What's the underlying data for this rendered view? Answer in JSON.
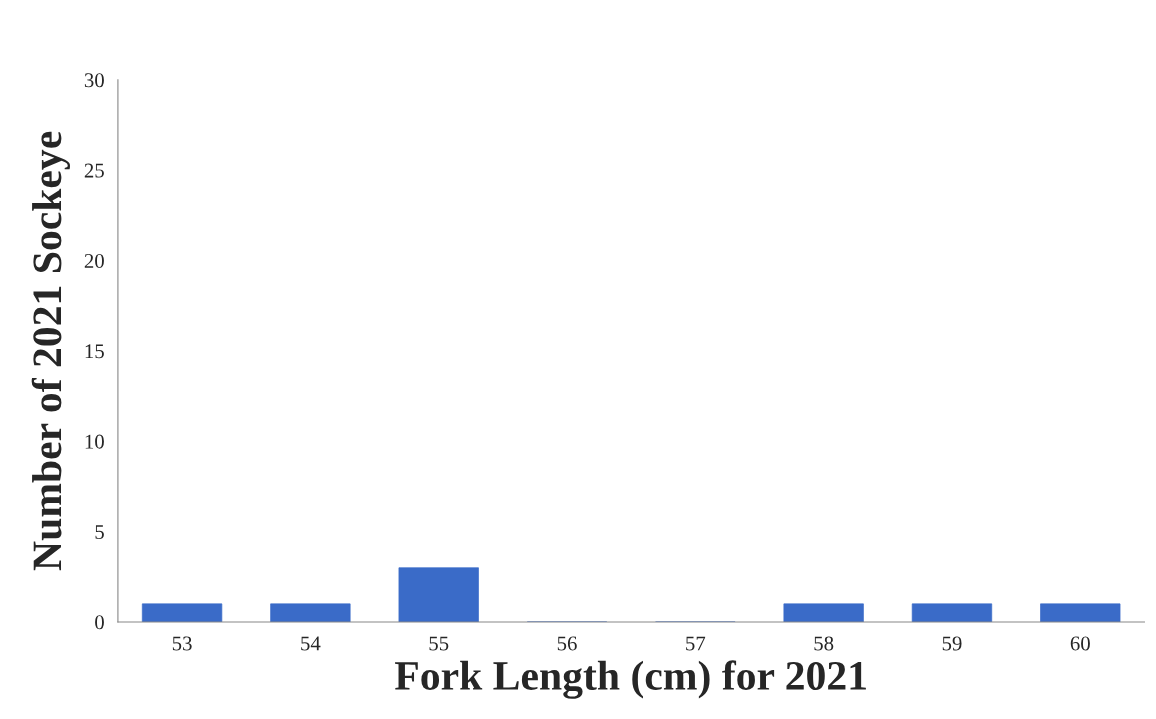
{
  "chart_data": {
    "type": "bar",
    "xlabel": "Fork Length (cm) for 2021",
    "ylabel": "Number of 2021 Sockeye",
    "categories": [
      "53",
      "54",
      "55",
      "56",
      "57",
      "58",
      "59",
      "60"
    ],
    "values": [
      1,
      1,
      3,
      0,
      0,
      1,
      1,
      1
    ],
    "color": "#3a6bc8",
    "ylim": [
      0,
      30
    ],
    "yticks": [
      0,
      5,
      10,
      15,
      20,
      25,
      30
    ],
    "grid": false,
    "legend": false
  }
}
